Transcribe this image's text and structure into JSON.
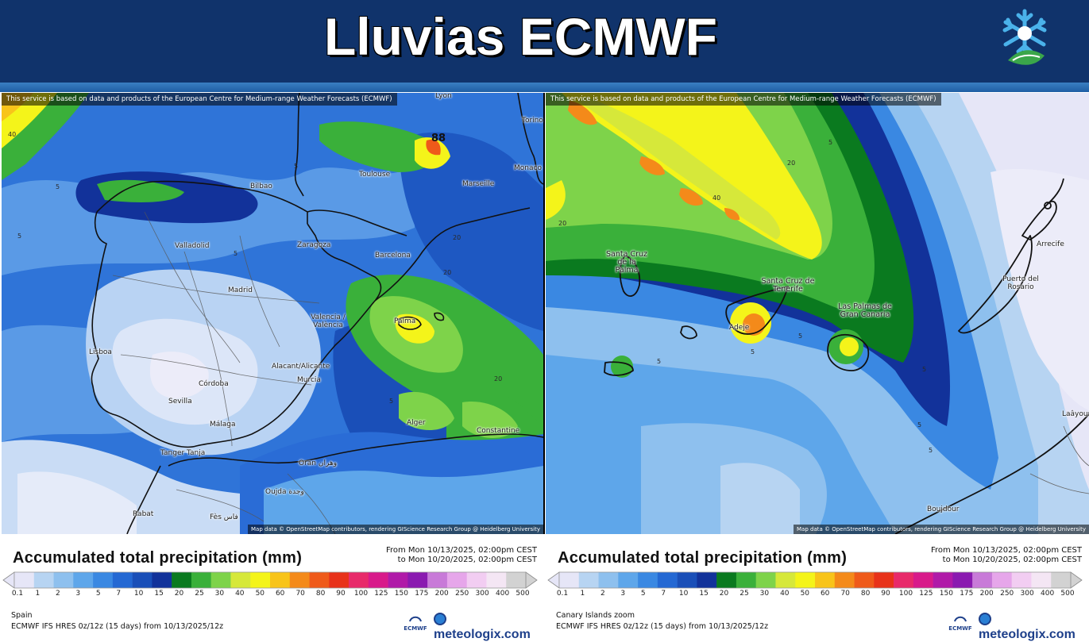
{
  "header": {
    "title": "Lluvias ECMWF"
  },
  "colors": {
    "header_bg": "#10336b",
    "stripe": "#2a6db5",
    "brand": "#1d3f8a"
  },
  "maps": {
    "left": {
      "service_note": "This service is based on data and products of the European Centre for Medium-range Weather Forecasts (ECMWF)",
      "attribution": "Map data © OpenStreetMap contributors, rendering GIScience Research Group @ Heidelberg University",
      "cities": [
        "Lyon",
        "Torino",
        "Toulouse",
        "Monaco",
        "Bilbao",
        "Marseille",
        "Valladolid",
        "Zaragoza",
        "Barcelona",
        "Madrid",
        "Valencia / València",
        "Palma",
        "Lisboa",
        "Alacant/Alicante",
        "Murcia",
        "Córdoba",
        "Sevilla",
        "Málaga",
        "Alger",
        "Constantine",
        "Tanger Tanja",
        "Oran وهران",
        "Oujda وجدة",
        "Rabat",
        "Fès فاس"
      ],
      "contour_labels": [
        "40",
        "5",
        "5",
        "5",
        "20",
        "88",
        "5",
        "20",
        "20",
        "5"
      ]
    },
    "right": {
      "service_note": "This service is based on data and products of the European Centre for Medium-range Weather Forecasts (ECMWF)",
      "attribution": "Map data © OpenStreetMap contributors, rendering GIScience Research Group @ Heidelberg University",
      "cities": [
        "Santa Cruz de la Palma",
        "Santa Cruz de Tenerife",
        "Adeje",
        "Las Palmas de Gran Canaria",
        "Arrecife",
        "Puerto del Rosario",
        "Laâyoune",
        "Boujdour"
      ],
      "contour_labels": [
        "40",
        "20",
        "20",
        "5",
        "5",
        "5",
        "5",
        "5",
        "5",
        "5"
      ]
    }
  },
  "legend": {
    "title": "Accumulated total precipitation (mm)",
    "date_from": "From Mon 10/13/2025, 02:00pm CEST",
    "date_to": "to Mon 10/20/2025, 02:00pm CEST",
    "ticks": [
      "0.1",
      "1",
      "2",
      "3",
      "5",
      "7",
      "10",
      "15",
      "20",
      "25",
      "30",
      "40",
      "50",
      "60",
      "70",
      "80",
      "90",
      "100",
      "125",
      "150",
      "175",
      "200",
      "250",
      "300",
      "400",
      "500"
    ],
    "bin_colors": [
      "#e6e6f7",
      "#b7d4f2",
      "#8ec0ee",
      "#5ea6ea",
      "#3a88e2",
      "#2468d3",
      "#1a4fb8",
      "#12329a",
      "#0a7a1f",
      "#3ab03a",
      "#7ed34a",
      "#d6e83a",
      "#f4f41a",
      "#f8c41a",
      "#f48a1a",
      "#ef5a1a",
      "#e8321a",
      "#e82a6a",
      "#d81a8a",
      "#b01aa8",
      "#8a1ab0",
      "#c87ad8",
      "#e6a6ea",
      "#f2cdf2",
      "#f4e6f4",
      "#d2d2d2"
    ],
    "region_left": "Spain",
    "region_right": "Canary Islands zoom",
    "model_line": "ECMWF IFS HRES 0z/12z (15 days) from 10/13/2025/12z",
    "ecmwf_label": "ECMWF",
    "brand": "meteologix.com"
  }
}
